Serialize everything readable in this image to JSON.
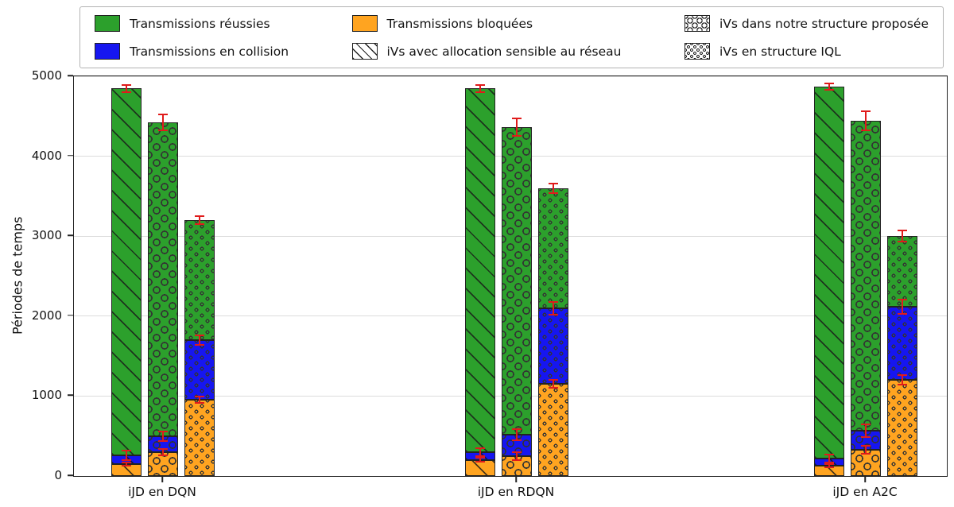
{
  "colors": {
    "green": "#2ca02c",
    "blue": "#1616f0",
    "orange": "#ffa420",
    "error": "#e01b1b",
    "grid": "#dcdcdc",
    "axis": "#222222"
  },
  "legend": {
    "columns": [
      [
        {
          "label": "Transmissions réussies",
          "color": "green"
        },
        {
          "label": "Transmissions en collision",
          "color": "blue"
        }
      ],
      [
        {
          "label": "Transmissions bloquées",
          "color": "orange"
        },
        {
          "label": "iVs avec allocation sensible au réseau",
          "pattern": "diag"
        }
      ],
      [
        {
          "label": "iVs dans notre structure proposée",
          "pattern": "ocirc"
        },
        {
          "label": "iVs en structure IQL",
          "pattern": "dot"
        }
      ]
    ]
  },
  "chart_data": {
    "type": "bar",
    "stacked": true,
    "title": "",
    "xlabel": "",
    "ylabel": "Périodes de temps",
    "ylim": [
      0,
      5000
    ],
    "yticks": [
      0,
      1000,
      2000,
      3000,
      4000,
      5000
    ],
    "grid": "horizontal",
    "legend_position": "top",
    "groups": [
      "iJD en DQN",
      "iJD en RDQN",
      "iJD en A2C"
    ],
    "bar_styles": [
      {
        "name": "iVs avec allocation sensible au réseau",
        "pattern": "diag"
      },
      {
        "name": "iVs dans notre structure proposée",
        "pattern": "ocirc"
      },
      {
        "name": "iVs en structure IQL",
        "pattern": "dot"
      }
    ],
    "segments": [
      {
        "name": "Transmissions bloquées",
        "color": "orange"
      },
      {
        "name": "Transmissions en collision",
        "color": "blue"
      },
      {
        "name": "Transmissions réussies",
        "color": "green"
      }
    ],
    "values": [
      [
        [
          150,
          110,
          4590
        ],
        [
          300,
          200,
          3920
        ],
        [
          950,
          750,
          1500
        ]
      ],
      [
        [
          200,
          100,
          4550
        ],
        [
          250,
          270,
          3840
        ],
        [
          1150,
          950,
          1500
        ]
      ],
      [
        [
          130,
          90,
          4650
        ],
        [
          330,
          240,
          3870
        ],
        [
          1200,
          920,
          880
        ]
      ]
    ],
    "errors": [
      [
        [
          20,
          60,
          45
        ],
        [
          40,
          60,
          100
        ],
        [
          40,
          60,
          50
        ]
      ],
      [
        [
          25,
          50,
          45
        ],
        [
          50,
          70,
          110
        ],
        [
          50,
          80,
          60
        ]
      ],
      [
        [
          20,
          50,
          40
        ],
        [
          50,
          80,
          120
        ],
        [
          60,
          90,
          70
        ]
      ]
    ]
  }
}
